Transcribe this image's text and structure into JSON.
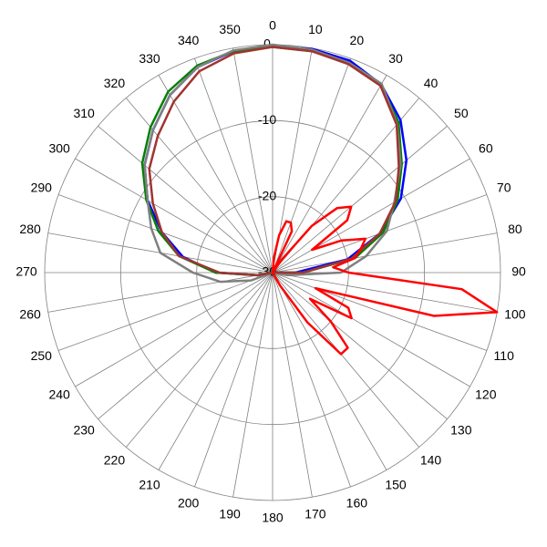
{
  "chart_data": {
    "type": "polar",
    "rlim": [
      -30,
      0
    ],
    "rticks": [
      -30,
      -20,
      -10,
      0
    ],
    "thetaticks": [
      0,
      10,
      20,
      30,
      40,
      50,
      60,
      70,
      80,
      90,
      100,
      110,
      120,
      130,
      140,
      150,
      160,
      170,
      180,
      190,
      200,
      210,
      220,
      230,
      240,
      250,
      260,
      270,
      280,
      290,
      300,
      310,
      320,
      330,
      340,
      350
    ],
    "grid": true,
    "series": [
      {
        "color": "#0000ff",
        "theta": [
          0,
          10,
          20,
          30,
          40,
          50,
          60,
          70,
          80,
          90,
          100,
          110,
          120,
          130,
          140,
          150,
          160,
          170,
          180,
          190,
          200,
          210,
          220,
          230,
          240,
          250,
          260,
          270,
          280,
          290,
          300,
          310,
          320,
          330,
          340,
          350
        ],
        "values": [
          -0.2,
          -0.1,
          -0.3,
          -1.4,
          -3.8,
          -7,
          -10.5,
          -15,
          -20,
          -27,
          -30,
          -30,
          -30,
          -30,
          -30,
          -30,
          -30,
          -30,
          -30,
          -30,
          -30,
          -30,
          -30,
          -30,
          -30,
          -30,
          -28,
          -22.5,
          -18,
          -14.5,
          -11,
          -8,
          -5.5,
          -3,
          -1.2,
          -0.4
        ]
      },
      {
        "color": "#008000",
        "theta": [
          0,
          10,
          20,
          30,
          40,
          50,
          60,
          70,
          80,
          90,
          100,
          110,
          120,
          130,
          140,
          150,
          160,
          170,
          180,
          190,
          200,
          210,
          220,
          230,
          240,
          250,
          260,
          270,
          280,
          290,
          300,
          310,
          320,
          330,
          340,
          350
        ],
        "values": [
          -0.3,
          -0.4,
          -0.6,
          -1.5,
          -4.2,
          -7.8,
          -11,
          -14.5,
          -19,
          -26,
          -30,
          -30,
          -30,
          -30,
          -30,
          -30,
          -30,
          -30,
          -30,
          -30,
          -30,
          -30,
          -30,
          -30,
          -30,
          -30,
          -28,
          -22.5,
          -17.5,
          -14,
          -10.8,
          -7.6,
          -5,
          -2.5,
          -1,
          -0.4
        ]
      },
      {
        "color": "#808080",
        "theta": [
          0,
          10,
          20,
          30,
          40,
          50,
          60,
          70,
          80,
          90,
          100,
          110,
          120,
          130,
          140,
          150,
          160,
          170,
          180,
          190,
          200,
          210,
          220,
          230,
          240,
          250,
          260,
          270,
          280,
          290,
          300,
          310,
          320,
          330,
          340,
          350
        ],
        "values": [
          0,
          -0.2,
          -0.6,
          -1.3,
          -4.5,
          -8,
          -11.5,
          -14,
          -17.5,
          -21,
          -28,
          -30,
          -30,
          -30,
          -30,
          -30,
          -30,
          -30,
          -30,
          -30,
          -30,
          -30,
          -30,
          -30,
          -30,
          -27,
          -23,
          -19.5,
          -15,
          -13,
          -11,
          -8,
          -5.5,
          -3,
          -1.2,
          -0.3
        ]
      },
      {
        "color": "#a0352f",
        "theta": [
          0,
          10,
          20,
          30,
          40,
          50,
          60,
          70,
          80,
          90,
          100,
          110,
          120,
          130,
          140,
          150,
          160,
          170,
          180,
          190,
          200,
          210,
          220,
          230,
          240,
          250,
          260,
          270,
          280,
          290,
          300,
          310,
          320,
          330,
          340,
          350
        ],
        "values": [
          -0.3,
          -0.4,
          -0.8,
          -1.6,
          -4.6,
          -8.3,
          -11.3,
          -15,
          -19.5,
          -26,
          -30,
          -30,
          -30,
          -30,
          -30,
          -30,
          -30,
          -30,
          -30,
          -30,
          -30,
          -30,
          -30,
          -30,
          -30,
          -30,
          -28,
          -23,
          -17.5,
          -14.5,
          -11.8,
          -8.8,
          -6.5,
          -4,
          -1.8,
          -0.7
        ]
      },
      {
        "color": "#ff0000",
        "theta": [
          0,
          5,
          10,
          15,
          20,
          25,
          30,
          35,
          40,
          45,
          50,
          55,
          60,
          65,
          70,
          75,
          80,
          85,
          90,
          95,
          100,
          105,
          110,
          115,
          120,
          125,
          130,
          135,
          140,
          145,
          150,
          155,
          160,
          165,
          170,
          175,
          180,
          185,
          190,
          195,
          200,
          205,
          210,
          215,
          220,
          225,
          230,
          235,
          240,
          245,
          250,
          255,
          260,
          265,
          270,
          275,
          280,
          285,
          290,
          295,
          300,
          305,
          310,
          315,
          320,
          325,
          330,
          335,
          340,
          345,
          350,
          355
        ],
        "values": [
          -30,
          -28,
          -25,
          -23,
          -23,
          -24,
          -30,
          -28,
          -22,
          -18,
          -16.5,
          -18,
          -24,
          -20,
          -17,
          -18,
          -19,
          -22,
          -20,
          -5,
          0,
          -8,
          -24,
          -19,
          -18,
          -24,
          -20,
          -16,
          -16,
          -22,
          -28,
          -30,
          -30,
          -30,
          -30,
          -30,
          -30,
          -30,
          -30,
          -30,
          -30,
          -30,
          -30,
          -30,
          -30,
          -30,
          -30,
          -30,
          -30,
          -30,
          -30,
          -30,
          -30,
          -30,
          -30,
          -30,
          -30,
          -30,
          -30,
          -30,
          -30,
          -30,
          -30,
          -30,
          -30,
          -30,
          -30,
          -30,
          -30,
          -30,
          -30,
          -30
        ]
      }
    ]
  }
}
